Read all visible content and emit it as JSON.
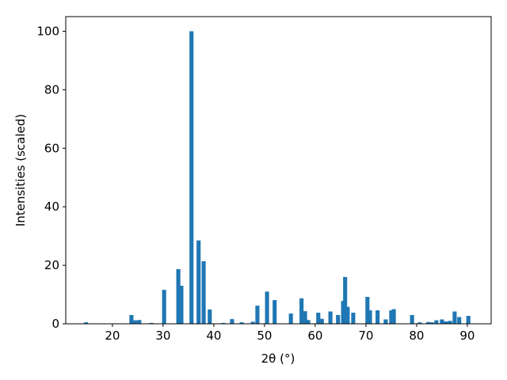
{
  "chart_data": {
    "type": "bar",
    "x_label": "2θ (°)",
    "y_label": "Intensities (scaled)",
    "x": [
      14.8,
      23.75,
      24.5,
      25.3,
      27.7,
      30.2,
      33.0,
      33.6,
      35.6,
      37.0,
      38.0,
      39.2,
      41.9,
      43.6,
      45.5,
      47.7,
      48.6,
      50.5,
      52.0,
      55.2,
      57.3,
      58.0,
      58.6,
      60.6,
      61.3,
      63.0,
      64.5,
      65.5,
      65.9,
      66.4,
      67.5,
      70.3,
      70.8,
      72.3,
      73.9,
      75.0,
      75.5,
      79.1,
      80.6,
      82.3,
      83.0,
      83.9,
      85.0,
      85.8,
      86.6,
      87.5,
      88.4,
      90.2
    ],
    "values": [
      0.5,
      3.0,
      1.2,
      1.3,
      0.3,
      11.6,
      18.7,
      13.0,
      100,
      28.5,
      21.4,
      4.9,
      0.3,
      1.6,
      0.5,
      0.7,
      6.2,
      11.0,
      8.1,
      3.5,
      8.7,
      4.3,
      1.3,
      3.8,
      1.7,
      4.2,
      3.0,
      7.8,
      16.0,
      5.8,
      3.8,
      9.2,
      4.6,
      4.6,
      1.5,
      4.6,
      5.0,
      3.0,
      0.5,
      0.6,
      0.5,
      1.2,
      1.5,
      0.8,
      1.0,
      4.2,
      2.3,
      2.7
    ],
    "color": "#1f77b4",
    "xlim": [
      10.8,
      94.7
    ],
    "xticks": [
      20,
      30,
      40,
      50,
      60,
      70,
      80,
      90
    ],
    "ylim": [
      0,
      105
    ],
    "yticks": [
      0,
      20,
      40,
      60,
      80,
      100
    ]
  }
}
